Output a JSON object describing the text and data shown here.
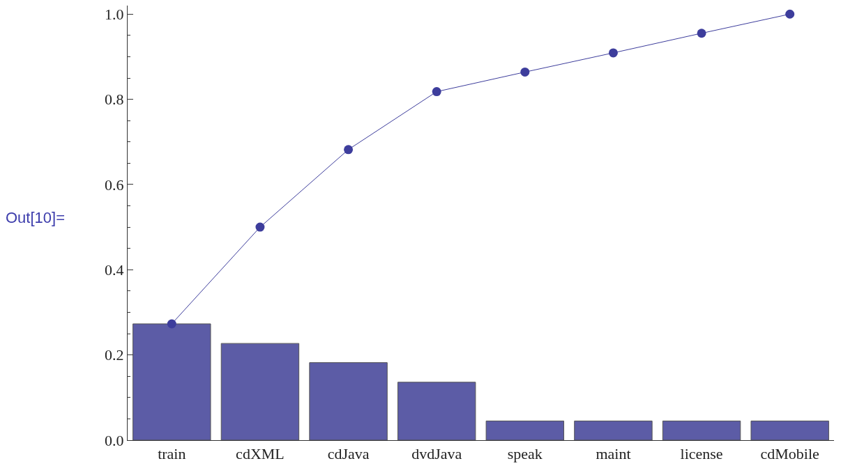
{
  "chart_data": {
    "type": "bar",
    "categories": [
      "train",
      "cdXML",
      "cdJava",
      "dvdJava",
      "speak",
      "maint",
      "license",
      "cdMobile"
    ],
    "series": [
      {
        "color": "#5c5ca6",
        "values": [
          0.273,
          0.227,
          0.182,
          0.136,
          0.045,
          0.045,
          0.045,
          0.045
        ]
      },
      {
        "type": "line",
        "color": "#3d3d9c",
        "marker": "circle",
        "values": [
          0.273,
          0.5,
          0.682,
          0.818,
          0.864,
          0.909,
          0.955,
          1.0
        ]
      }
    ],
    "ylim": [
      0,
      1.02
    ],
    "yticks": [
      {
        "value": 0,
        "label": "0.0"
      },
      0.2,
      0.4,
      0.6,
      0.8,
      {
        "value": 1,
        "label": "1.0"
      }
    ],
    "grid": false,
    "annotations": [
      "Out[10]="
    ]
  }
}
